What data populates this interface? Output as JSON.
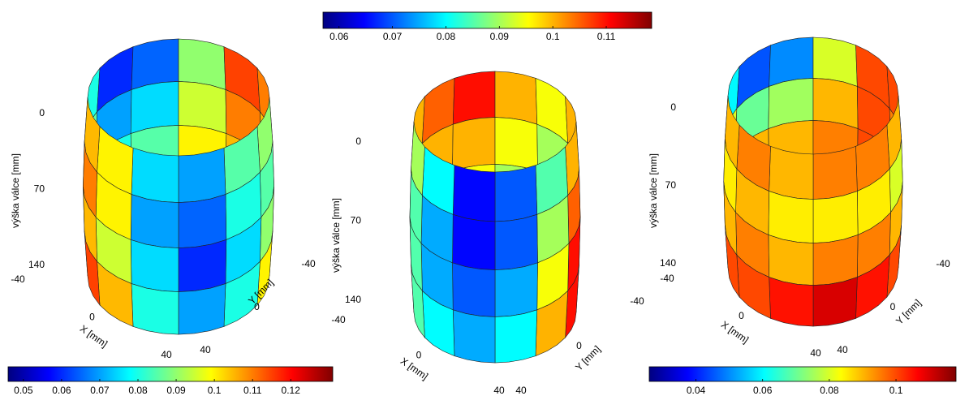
{
  "chart_data": [
    {
      "type": "surface",
      "zlabel": "výška válce [mm]",
      "xlabel": "X [mm]",
      "ylabel": "Y [mm]",
      "zlim": [
        0,
        140
      ],
      "zticks": [
        0,
        70,
        140
      ],
      "xlim": [
        -40,
        40
      ],
      "xticks": [
        -40,
        0,
        40
      ],
      "ylim": [
        -40,
        40
      ],
      "yticks": [
        40,
        0,
        -40
      ],
      "clim": [
        0.046,
        0.131
      ],
      "cticks": [
        0.05,
        0.06,
        0.07,
        0.08,
        0.09,
        0.1,
        0.11,
        0.12
      ],
      "surface": [
        [
          0.09,
          0.085,
          0.07,
          0.075,
          0.1,
          0.105,
          0.08,
          0.06,
          0.065,
          0.09,
          0.115,
          0.11
        ],
        [
          0.085,
          0.08,
          0.065,
          0.07,
          0.1,
          0.11,
          0.085,
          0.07,
          0.075,
          0.095,
          0.11,
          0.105
        ],
        [
          0.09,
          0.075,
          0.06,
          0.075,
          0.095,
          0.105,
          0.09,
          0.08,
          0.085,
          0.1,
          0.105,
          0.1
        ],
        [
          0.1,
          0.08,
          0.07,
          0.08,
          0.105,
          0.115,
          0.1,
          0.09,
          0.09,
          0.1,
          0.105,
          0.105
        ]
      ]
    },
    {
      "type": "surface",
      "zlabel": "výška válce [mm]",
      "xlabel": "X [mm]",
      "ylabel": "Y [mm]",
      "zlim": [
        0,
        140
      ],
      "zticks": [
        0,
        70,
        140
      ],
      "xlim": [
        -40,
        40
      ],
      "xticks": [
        -40,
        0,
        40
      ],
      "ylim": [
        -40,
        40
      ],
      "yticks": [
        40,
        0,
        -40
      ],
      "clim": [
        0.057,
        0.1185
      ],
      "cticks": [
        0.06,
        0.07,
        0.08,
        0.09,
        0.1,
        0.11
      ],
      "surface": [
        [
          0.1,
          0.085,
          0.07,
          0.065,
          0.08,
          0.09,
          0.1,
          0.105,
          0.11,
          0.1,
          0.095,
          0.1
        ],
        [
          0.105,
          0.09,
          0.07,
          0.065,
          0.075,
          0.085,
          0.095,
          0.1,
          0.1,
          0.095,
          0.09,
          0.1
        ],
        [
          0.11,
          0.095,
          0.075,
          0.07,
          0.075,
          0.085,
          0.09,
          0.095,
          0.095,
          0.09,
          0.09,
          0.105
        ],
        [
          0.11,
          0.1,
          0.08,
          0.075,
          0.08,
          0.085,
          0.09,
          0.09,
          0.09,
          0.09,
          0.1,
          0.11
        ]
      ]
    },
    {
      "type": "surface",
      "zlabel": "výška válce [mm]",
      "xlabel": "X [mm]",
      "ylabel": "Y [mm]",
      "zlim": [
        0,
        140
      ],
      "zticks": [
        0,
        70,
        140
      ],
      "xlim": [
        -40,
        40
      ],
      "xticks": [
        -40,
        0,
        40
      ],
      "ylim": [
        -40,
        40
      ],
      "yticks": [
        40,
        0,
        -40
      ],
      "clim": [
        0.026,
        0.118
      ],
      "cticks": [
        0.04,
        0.06,
        0.08,
        0.1
      ],
      "surface": [
        [
          0.09,
          0.095,
          0.095,
          0.09,
          0.095,
          0.09,
          0.06,
          0.045,
          0.05,
          0.08,
          0.1,
          0.1
        ],
        [
          0.08,
          0.085,
          0.085,
          0.085,
          0.09,
          0.085,
          0.08,
          0.07,
          0.075,
          0.09,
          0.1,
          0.095
        ],
        [
          0.09,
          0.095,
          0.095,
          0.09,
          0.095,
          0.09,
          0.09,
          0.09,
          0.09,
          0.095,
          0.1,
          0.095
        ],
        [
          0.1,
          0.105,
          0.11,
          0.105,
          0.1,
          0.1,
          0.1,
          0.1,
          0.1,
          0.1,
          0.1,
          0.1
        ]
      ]
    }
  ]
}
